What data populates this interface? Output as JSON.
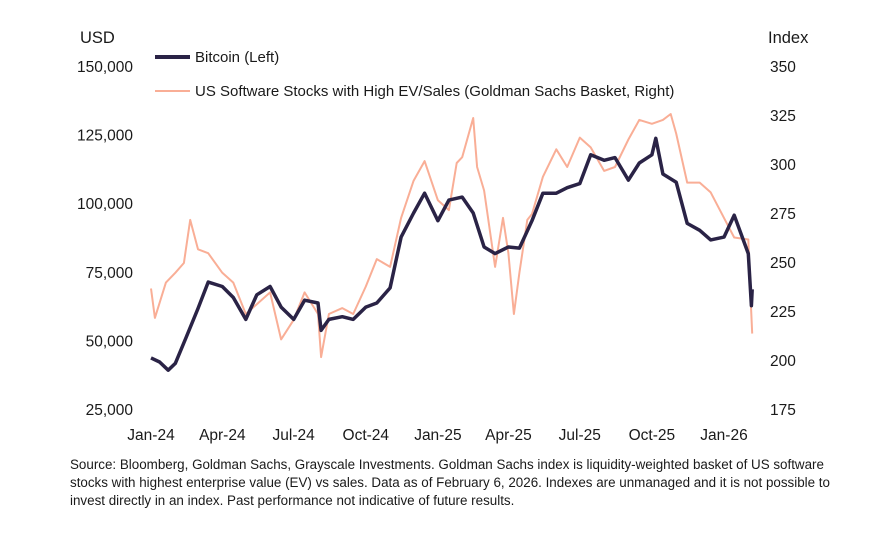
{
  "chart_data": {
    "type": "line",
    "title": "",
    "left_axis": {
      "unit_label": "USD",
      "ylim": [
        25000,
        150000
      ],
      "ticks": [
        "25,000",
        "50,000",
        "75,000",
        "100,000",
        "125,000",
        "150,000"
      ],
      "tick_values": [
        25000,
        50000,
        75000,
        100000,
        125000,
        150000
      ]
    },
    "right_axis": {
      "unit_label": "Index",
      "ylim": [
        175,
        350
      ],
      "ticks": [
        "175",
        "200",
        "225",
        "250",
        "275",
        "300",
        "325",
        "350"
      ],
      "tick_values": [
        175,
        200,
        225,
        250,
        275,
        300,
        325,
        350
      ]
    },
    "x_ticks": [
      "Jan-24",
      "Apr-24",
      "Jul-24",
      "Oct-24",
      "Jan-25",
      "Apr-25",
      "Jul-25",
      "Oct-25",
      "Jan-26"
    ],
    "x_tick_dates": [
      "2024-01-01",
      "2024-04-01",
      "2024-07-01",
      "2024-10-01",
      "2025-01-01",
      "2025-04-01",
      "2025-07-01",
      "2025-10-01",
      "2026-01-01"
    ],
    "grid": false,
    "legend_placement": "top",
    "series": [
      {
        "name": "Bitcoin (Left)",
        "axis": "left",
        "color": "#2a2346",
        "x": [
          "2024-01-01",
          "2024-01-12",
          "2024-01-23",
          "2024-02-01",
          "2024-02-15",
          "2024-03-01",
          "2024-03-14",
          "2024-04-01",
          "2024-04-15",
          "2024-05-01",
          "2024-05-15",
          "2024-06-01",
          "2024-06-15",
          "2024-07-01",
          "2024-07-15",
          "2024-08-01",
          "2024-08-05",
          "2024-08-15",
          "2024-09-01",
          "2024-09-15",
          "2024-10-01",
          "2024-10-15",
          "2024-11-01",
          "2024-11-15",
          "2024-12-01",
          "2024-12-15",
          "2025-01-01",
          "2025-01-15",
          "2025-02-01",
          "2025-02-15",
          "2025-03-01",
          "2025-03-15",
          "2025-04-01",
          "2025-04-15",
          "2025-05-01",
          "2025-05-15",
          "2025-06-01",
          "2025-06-15",
          "2025-07-01",
          "2025-07-15",
          "2025-08-01",
          "2025-08-15",
          "2025-09-01",
          "2025-09-15",
          "2025-10-01",
          "2025-10-06",
          "2025-10-15",
          "2025-11-01",
          "2025-11-15",
          "2025-12-01",
          "2025-12-15",
          "2026-01-01",
          "2026-01-14",
          "2026-02-01",
          "2026-02-05",
          "2026-02-06"
        ],
        "values": [
          44000,
          42500,
          39500,
          42000,
          51600,
          62000,
          71600,
          70000,
          66000,
          58000,
          67000,
          70000,
          62500,
          58000,
          65000,
          64000,
          54000,
          58000,
          59000,
          58000,
          62500,
          64000,
          69500,
          88000,
          96800,
          104000,
          94000,
          101500,
          102600,
          96800,
          84400,
          82000,
          84400,
          84000,
          94000,
          104000,
          104000,
          106000,
          107500,
          118000,
          116000,
          117000,
          108800,
          115000,
          118000,
          124000,
          111000,
          108000,
          93000,
          90500,
          87000,
          88000,
          96000,
          82000,
          63000,
          69000
        ]
      },
      {
        "name": "US Software Stocks with High EV/Sales (Goldman Sachs Basket, Right)",
        "axis": "right",
        "color": "#f9ae96",
        "x": [
          "2024-01-01",
          "2024-01-06",
          "2024-01-20",
          "2024-02-01",
          "2024-02-12",
          "2024-02-20",
          "2024-03-01",
          "2024-03-14",
          "2024-04-01",
          "2024-04-15",
          "2024-05-01",
          "2024-05-15",
          "2024-06-01",
          "2024-06-15",
          "2024-07-01",
          "2024-07-15",
          "2024-08-01",
          "2024-08-05",
          "2024-08-15",
          "2024-09-01",
          "2024-09-15",
          "2024-10-01",
          "2024-10-15",
          "2024-11-01",
          "2024-11-15",
          "2024-12-01",
          "2024-12-15",
          "2025-01-01",
          "2025-01-15",
          "2025-01-25",
          "2025-02-01",
          "2025-02-15",
          "2025-02-20",
          "2025-03-01",
          "2025-03-15",
          "2025-03-25",
          "2025-04-01",
          "2025-04-08",
          "2025-04-15",
          "2025-04-25",
          "2025-05-01",
          "2025-05-15",
          "2025-06-01",
          "2025-06-15",
          "2025-07-01",
          "2025-07-15",
          "2025-08-01",
          "2025-08-15",
          "2025-09-01",
          "2025-09-15",
          "2025-10-01",
          "2025-10-15",
          "2025-10-25",
          "2025-11-01",
          "2025-11-15",
          "2025-12-01",
          "2025-12-15",
          "2026-01-01",
          "2026-01-14",
          "2026-02-01",
          "2026-02-04",
          "2026-02-06"
        ],
        "values": [
          237,
          222,
          240,
          245,
          250,
          272,
          257,
          255,
          245,
          240,
          224,
          229,
          235,
          211,
          221,
          235,
          224,
          202,
          224,
          227,
          224,
          238,
          252,
          248,
          273,
          292,
          302,
          282,
          277,
          301,
          304,
          324,
          299,
          287,
          248,
          273,
          255,
          224,
          245,
          272,
          275,
          294,
          308,
          299,
          314,
          309,
          297,
          299,
          313,
          323,
          321,
          323,
          326,
          316,
          291,
          291,
          286,
          273,
          263,
          262,
          231,
          214
        ]
      }
    ]
  },
  "legend": {
    "items": [
      "Bitcoin (Left)",
      "US Software Stocks with High EV/Sales (Goldman Sachs Basket, Right)"
    ]
  },
  "footnote": "Source: Bloomberg, Goldman Sachs, Grayscale Investments. Goldman Sachs index is liquidity-weighted basket of US software stocks with highest enterprise value (EV) vs sales. Data as of February 6, 2026. Indexes are unmanaged and it is not possible to invest directly in an index. Past performance not indicative of future results."
}
